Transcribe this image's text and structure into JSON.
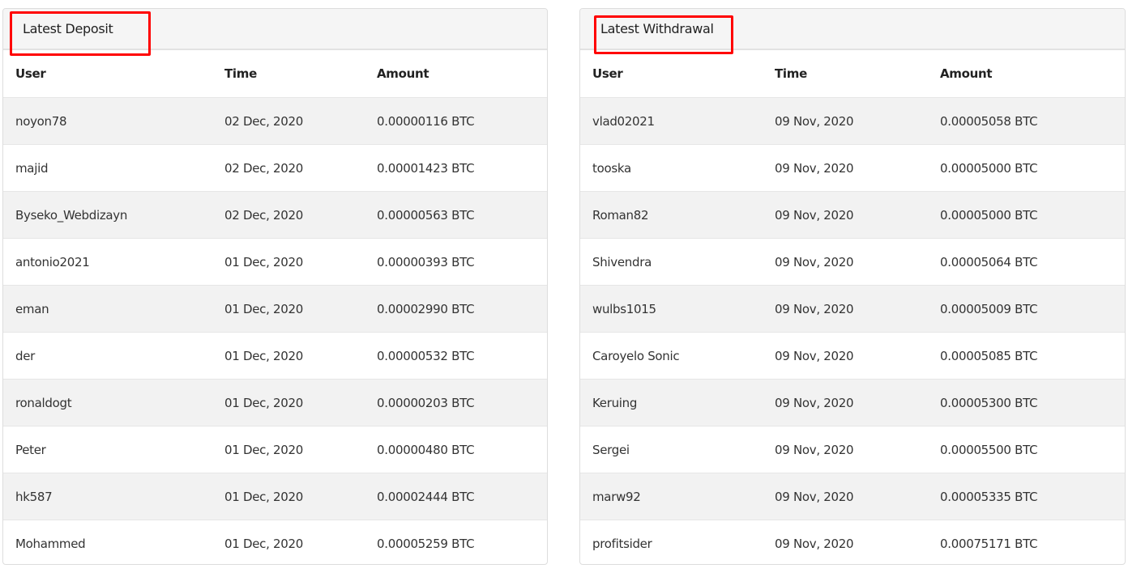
{
  "deposit": {
    "title": "Latest Deposit",
    "headers": [
      "User",
      "Time",
      "Amount"
    ],
    "rows": [
      [
        "noyon78",
        "02 Dec, 2020",
        "0.00000116 BTC"
      ],
      [
        "majid",
        "02 Dec, 2020",
        "0.00001423 BTC"
      ],
      [
        "Byseko_Webdizayn",
        "02 Dec, 2020",
        "0.00000563 BTC"
      ],
      [
        "antonio2021",
        "01 Dec, 2020",
        "0.00000393 BTC"
      ],
      [
        "eman",
        "01 Dec, 2020",
        "0.00002990 BTC"
      ],
      [
        "der",
        "01 Dec, 2020",
        "0.00000532 BTC"
      ],
      [
        "ronaldogt",
        "01 Dec, 2020",
        "0.00000203 BTC"
      ],
      [
        "Peter",
        "01 Dec, 2020",
        "0.00000480 BTC"
      ],
      [
        "hk587",
        "01 Dec, 2020",
        "0.00002444 BTC"
      ],
      [
        "Mohammed",
        "01 Dec, 2020",
        "0.00005259 BTC"
      ]
    ]
  },
  "withdrawal": {
    "title": "Latest Withdrawal",
    "headers": [
      "User",
      "Time",
      "Amount"
    ],
    "rows": [
      [
        "vlad02021",
        "09 Nov, 2020",
        "0.00005058 BTC"
      ],
      [
        "tooska",
        "09 Nov, 2020",
        "0.00005000 BTC"
      ],
      [
        "Roman82",
        "09 Nov, 2020",
        "0.00005000 BTC"
      ],
      [
        "Shivendra",
        "09 Nov, 2020",
        "0.00005064 BTC"
      ],
      [
        "wulbs1015",
        "09 Nov, 2020",
        "0.00005009 BTC"
      ],
      [
        "Caroyelo Sonic",
        "09 Nov, 2020",
        "0.00005085 BTC"
      ],
      [
        "Keruing",
        "09 Nov, 2020",
        "0.00005300 BTC"
      ],
      [
        "Sergei",
        "09 Nov, 2020",
        "0.00005500 BTC"
      ],
      [
        "marw92",
        "09 Nov, 2020",
        "0.00005335 BTC"
      ],
      [
        "profitsider",
        "09 Nov, 2020",
        "0.00075171 BTC"
      ]
    ]
  },
  "colors": {
    "highlight": "#ff0000",
    "row_alt": "#f2f2f2",
    "header_bg": "#f5f5f5"
  }
}
